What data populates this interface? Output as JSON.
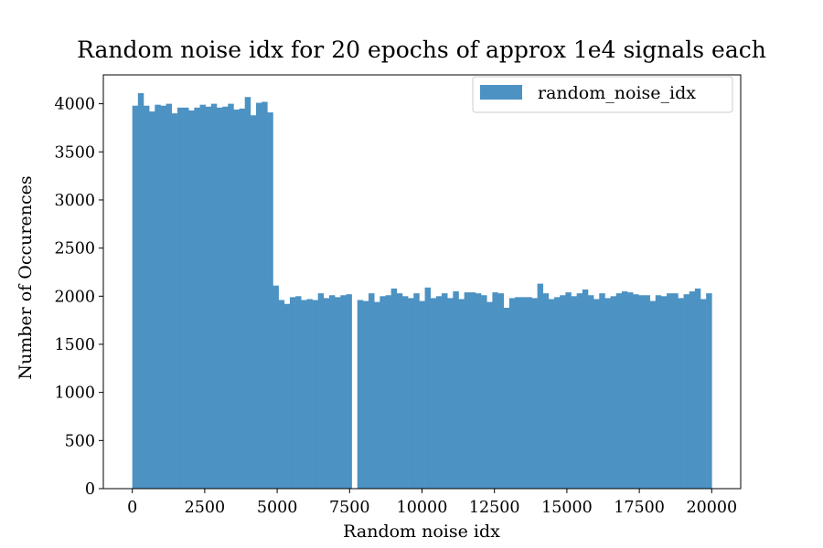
{
  "chart_data": {
    "type": "bar",
    "title": "Random noise idx for 20 epochs of approx 1e4 signals each",
    "xlabel": "Random noise idx",
    "ylabel": "Number of Occurences",
    "xlim": [
      -1000,
      21000
    ],
    "ylim": [
      0,
      4300
    ],
    "x_ticks": [
      0,
      2500,
      5000,
      7500,
      10000,
      12500,
      15000,
      17500,
      20000
    ],
    "y_ticks": [
      0,
      500,
      1000,
      1500,
      2000,
      2500,
      3000,
      3500,
      4000
    ],
    "bin_range": [
      0,
      20000
    ],
    "grid": false,
    "legend_position": "top-right",
    "color": "#4c92c3",
    "series": [
      {
        "name": "random_noise_idx",
        "values": [
          3980,
          4110,
          3980,
          3920,
          3990,
          3980,
          4000,
          3900,
          3960,
          3960,
          3930,
          3960,
          3990,
          3970,
          4000,
          3960,
          3970,
          4000,
          3940,
          3950,
          4070,
          3880,
          4010,
          4020,
          3910,
          2110,
          1960,
          1920,
          1990,
          2000,
          1960,
          1970,
          1960,
          2030,
          1980,
          2010,
          1990,
          2010,
          2020,
          0,
          1960,
          1950,
          2030,
          1940,
          2000,
          2010,
          2080,
          2030,
          2000,
          1980,
          2030,
          1950,
          2090,
          1980,
          2000,
          2030,
          1980,
          2050,
          1970,
          2040,
          2040,
          2030,
          2010,
          1940,
          2040,
          2030,
          1880,
          1980,
          1990,
          1990,
          1990,
          1980,
          2130,
          2030,
          1970,
          1990,
          2010,
          2040,
          2000,
          2030,
          2070,
          2010,
          1970,
          2030,
          1980,
          2000,
          2030,
          2050,
          2040,
          2020,
          2010,
          2010,
          1950,
          2010,
          2000,
          2030,
          2030,
          1980,
          2020,
          2050,
          2080,
          1970,
          2030
        ]
      }
    ]
  }
}
